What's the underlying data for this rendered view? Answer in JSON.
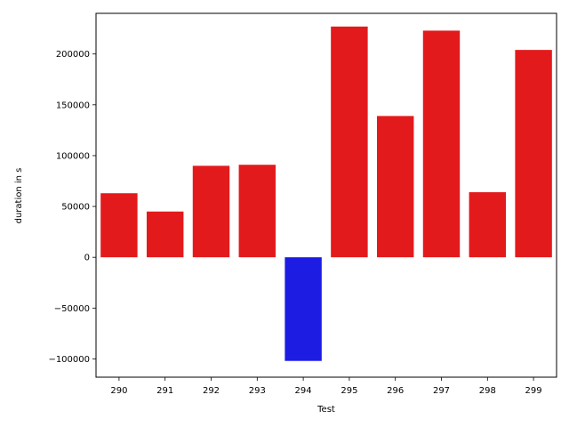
{
  "chart_data": {
    "type": "bar",
    "title": "",
    "xlabel": "Test",
    "ylabel": "duration in s",
    "categories": [
      "290",
      "291",
      "292",
      "293",
      "294",
      "295",
      "296",
      "297",
      "298",
      "299"
    ],
    "values": [
      63000,
      45000,
      90000,
      91000,
      -102000,
      227000,
      139000,
      223000,
      64000,
      204000
    ],
    "colors": [
      "#e31a1c",
      "#e31a1c",
      "#e31a1c",
      "#e31a1c",
      "#1c1ce3",
      "#e31a1c",
      "#e31a1c",
      "#e31a1c",
      "#e31a1c",
      "#e31a1c"
    ],
    "ylim": [
      -118000,
      240000
    ],
    "yticks": [
      -100000,
      -50000,
      0,
      50000,
      100000,
      150000,
      200000
    ],
    "ytick_labels": [
      "−100000",
      "−50000",
      "0",
      "50000",
      "100000",
      "150000",
      "200000"
    ],
    "grid": false,
    "legend": "none"
  }
}
